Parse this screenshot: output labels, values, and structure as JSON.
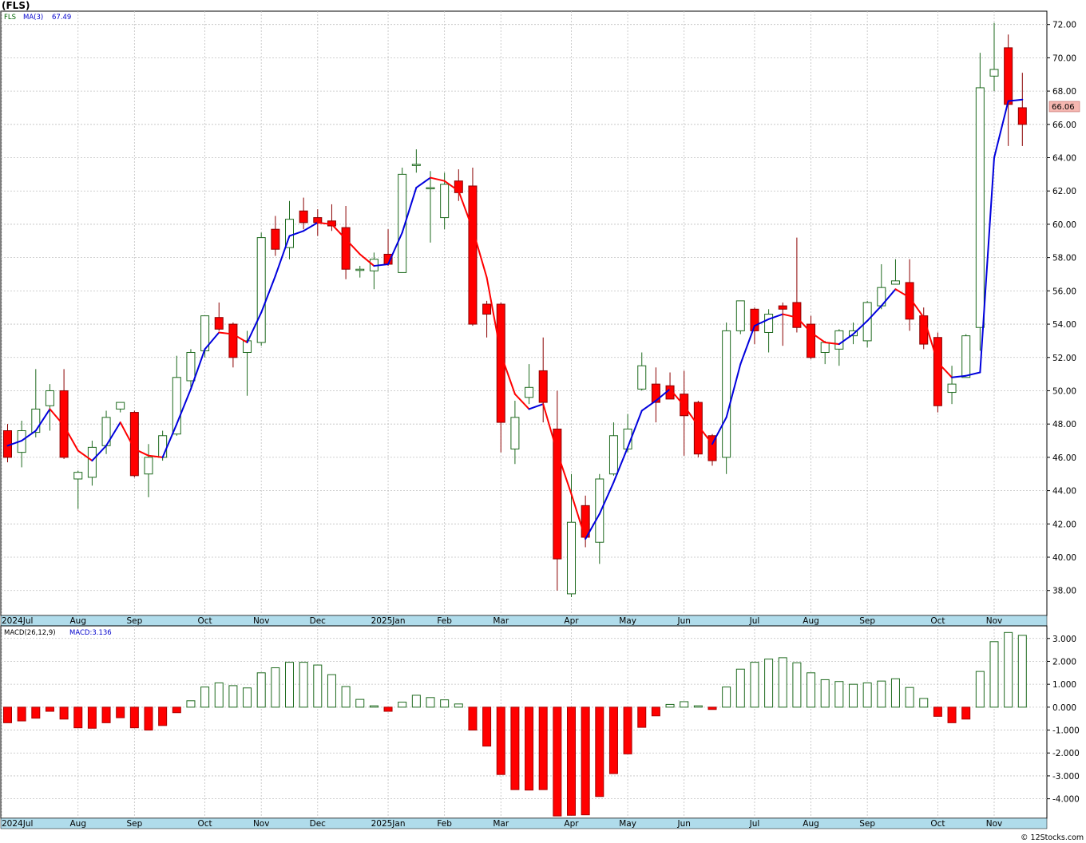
{
  "header": {
    "symbol_title": "(FLS)",
    "legend_symbol": "FLS",
    "legend_ma": "MA(3)",
    "legend_ma_value": "67.49",
    "last_price_label": "66.06",
    "macd_label": "MACD(26,12,9)",
    "macd_value_label": "MACD:3.136",
    "watermark": "© 12Stocks.com"
  },
  "colors": {
    "up": "#1e6a1e",
    "down": "#ff0000",
    "ma_up": "#0000dd",
    "ma_down": "#ff0000",
    "axis_strip": "#b0dceb",
    "price_tag": "#f5b7b1",
    "grid": "#c0c0c0",
    "text": "#000000",
    "legend_blue": "#0000cc"
  },
  "chart_data": [
    {
      "type": "candlestick",
      "title": "(FLS)",
      "ylim": [
        36.5,
        72.8
      ],
      "yticks": [
        "38.00",
        "40.00",
        "42.00",
        "44.00",
        "46.00",
        "48.00",
        "50.00",
        "52.00",
        "54.00",
        "56.00",
        "58.00",
        "60.00",
        "62.00",
        "64.00",
        "66.00",
        "68.00",
        "70.00",
        "72.00"
      ],
      "x_ticks": [
        {
          "label": "2024Jul",
          "index": -0.5
        },
        {
          "label": "Aug",
          "index": 5
        },
        {
          "label": "Sep",
          "index": 9
        },
        {
          "label": "Oct",
          "index": 14
        },
        {
          "label": "Nov",
          "index": 18
        },
        {
          "label": "Dec",
          "index": 22
        },
        {
          "label": "2025Jan",
          "index": 27
        },
        {
          "label": "Feb",
          "index": 31
        },
        {
          "label": "Mar",
          "index": 35
        },
        {
          "label": "Apr",
          "index": 40
        },
        {
          "label": "May",
          "index": 44
        },
        {
          "label": "Jun",
          "index": 48
        },
        {
          "label": "Jul",
          "index": 53
        },
        {
          "label": "Aug",
          "index": 57
        },
        {
          "label": "Sep",
          "index": 61
        },
        {
          "label": "Oct",
          "index": 66
        },
        {
          "label": "Nov",
          "index": 70
        }
      ],
      "candles": [
        {
          "o": 47.6,
          "h": 48.0,
          "l": 45.7,
          "c": 46.0
        },
        {
          "o": 46.3,
          "h": 48.2,
          "l": 45.4,
          "c": 47.6
        },
        {
          "o": 47.5,
          "h": 51.3,
          "l": 47.2,
          "c": 48.9
        },
        {
          "o": 49.1,
          "h": 50.4,
          "l": 47.6,
          "c": 50.0
        },
        {
          "o": 50.0,
          "h": 51.3,
          "l": 45.9,
          "c": 46.0
        },
        {
          "o": 44.7,
          "h": 45.2,
          "l": 42.9,
          "c": 45.1
        },
        {
          "o": 44.8,
          "h": 47.0,
          "l": 44.3,
          "c": 46.6
        },
        {
          "o": 46.7,
          "h": 48.8,
          "l": 46.2,
          "c": 48.4
        },
        {
          "o": 48.9,
          "h": 49.3,
          "l": 48.7,
          "c": 49.3
        },
        {
          "o": 48.7,
          "h": 48.8,
          "l": 44.8,
          "c": 44.9
        },
        {
          "o": 45.0,
          "h": 46.8,
          "l": 43.6,
          "c": 46.0
        },
        {
          "o": 46.0,
          "h": 47.6,
          "l": 45.8,
          "c": 47.3
        },
        {
          "o": 47.4,
          "h": 52.1,
          "l": 47.3,
          "c": 50.8
        },
        {
          "o": 50.6,
          "h": 52.5,
          "l": 50.2,
          "c": 52.3
        },
        {
          "o": 52.4,
          "h": 54.5,
          "l": 52.0,
          "c": 54.5
        },
        {
          "o": 54.4,
          "h": 55.3,
          "l": 53.6,
          "c": 53.7
        },
        {
          "o": 54.0,
          "h": 54.1,
          "l": 51.4,
          "c": 52.0
        },
        {
          "o": 52.3,
          "h": 53.6,
          "l": 49.7,
          "c": 53.0
        },
        {
          "o": 52.9,
          "h": 59.5,
          "l": 52.7,
          "c": 59.2
        },
        {
          "o": 59.7,
          "h": 60.5,
          "l": 58.1,
          "c": 58.5
        },
        {
          "o": 58.6,
          "h": 61.4,
          "l": 57.9,
          "c": 60.3
        },
        {
          "o": 60.8,
          "h": 61.6,
          "l": 59.7,
          "c": 60.1
        },
        {
          "o": 60.4,
          "h": 60.9,
          "l": 59.3,
          "c": 60.1
        },
        {
          "o": 60.2,
          "h": 61.2,
          "l": 59.6,
          "c": 59.9
        },
        {
          "o": 59.8,
          "h": 61.1,
          "l": 56.7,
          "c": 57.3
        },
        {
          "o": 57.3,
          "h": 57.5,
          "l": 56.8,
          "c": 57.3
        },
        {
          "o": 57.2,
          "h": 58.3,
          "l": 56.1,
          "c": 57.9
        },
        {
          "o": 58.2,
          "h": 59.7,
          "l": 57.5,
          "c": 57.6
        },
        {
          "o": 57.1,
          "h": 63.4,
          "l": 57.1,
          "c": 63.0
        },
        {
          "o": 63.6,
          "h": 64.5,
          "l": 63.1,
          "c": 63.6
        },
        {
          "o": 62.2,
          "h": 63.2,
          "l": 58.9,
          "c": 62.2
        },
        {
          "o": 60.4,
          "h": 63.1,
          "l": 59.7,
          "c": 62.4
        },
        {
          "o": 62.6,
          "h": 63.3,
          "l": 61.4,
          "c": 61.9
        },
        {
          "o": 62.3,
          "h": 63.4,
          "l": 53.9,
          "c": 54.0
        },
        {
          "o": 55.2,
          "h": 55.4,
          "l": 53.2,
          "c": 54.6
        },
        {
          "o": 55.2,
          "h": 55.3,
          "l": 46.3,
          "c": 48.1
        },
        {
          "o": 46.5,
          "h": 49.4,
          "l": 45.6,
          "c": 48.4
        },
        {
          "o": 49.6,
          "h": 51.6,
          "l": 49.2,
          "c": 50.2
        },
        {
          "o": 51.2,
          "h": 53.2,
          "l": 48.1,
          "c": 49.3
        },
        {
          "o": 47.7,
          "h": 50.0,
          "l": 38.0,
          "c": 39.9
        },
        {
          "o": 37.8,
          "h": 45.0,
          "l": 37.6,
          "c": 42.1
        },
        {
          "o": 43.1,
          "h": 43.7,
          "l": 40.6,
          "c": 41.2
        },
        {
          "o": 40.9,
          "h": 45.0,
          "l": 39.6,
          "c": 44.7
        },
        {
          "o": 45.0,
          "h": 48.1,
          "l": 44.9,
          "c": 47.3
        },
        {
          "o": 46.5,
          "h": 48.6,
          "l": 46.3,
          "c": 47.7
        },
        {
          "o": 50.1,
          "h": 52.3,
          "l": 50.0,
          "c": 51.5
        },
        {
          "o": 50.4,
          "h": 51.4,
          "l": 48.1,
          "c": 49.3
        },
        {
          "o": 50.3,
          "h": 51.1,
          "l": 49.5,
          "c": 49.5
        },
        {
          "o": 49.8,
          "h": 51.2,
          "l": 46.1,
          "c": 48.5
        },
        {
          "o": 49.3,
          "h": 49.4,
          "l": 46.0,
          "c": 46.2
        },
        {
          "o": 47.3,
          "h": 47.4,
          "l": 45.5,
          "c": 45.8
        },
        {
          "o": 46.0,
          "h": 54.1,
          "l": 45.0,
          "c": 53.6
        },
        {
          "o": 53.6,
          "h": 55.4,
          "l": 53.4,
          "c": 55.4
        },
        {
          "o": 54.9,
          "h": 55.0,
          "l": 52.8,
          "c": 53.6
        },
        {
          "o": 53.5,
          "h": 54.9,
          "l": 52.3,
          "c": 54.6
        },
        {
          "o": 55.1,
          "h": 55.3,
          "l": 52.7,
          "c": 54.9
        },
        {
          "o": 55.3,
          "h": 59.2,
          "l": 53.5,
          "c": 53.8
        },
        {
          "o": 54.0,
          "h": 54.5,
          "l": 51.9,
          "c": 52.0
        },
        {
          "o": 52.3,
          "h": 53.0,
          "l": 51.6,
          "c": 52.9
        },
        {
          "o": 52.5,
          "h": 53.7,
          "l": 51.5,
          "c": 53.6
        },
        {
          "o": 53.3,
          "h": 54.1,
          "l": 52.8,
          "c": 53.6
        },
        {
          "o": 53.0,
          "h": 55.4,
          "l": 52.6,
          "c": 55.3
        },
        {
          "o": 55.1,
          "h": 57.6,
          "l": 54.9,
          "c": 56.2
        },
        {
          "o": 56.4,
          "h": 57.9,
          "l": 56.4,
          "c": 56.6
        },
        {
          "o": 56.5,
          "h": 57.9,
          "l": 53.6,
          "c": 54.3
        },
        {
          "o": 54.5,
          "h": 55.0,
          "l": 52.5,
          "c": 52.8
        },
        {
          "o": 53.2,
          "h": 53.5,
          "l": 48.7,
          "c": 49.1
        },
        {
          "o": 49.9,
          "h": 51.5,
          "l": 49.2,
          "c": 50.4
        },
        {
          "o": 50.8,
          "h": 53.4,
          "l": 50.8,
          "c": 53.3
        },
        {
          "o": 53.8,
          "h": 70.3,
          "l": 52.4,
          "c": 68.2
        },
        {
          "o": 68.9,
          "h": 72.1,
          "l": 68.0,
          "c": 69.3
        },
        {
          "o": 70.6,
          "h": 71.4,
          "l": 64.7,
          "c": 67.2
        },
        {
          "o": 67.0,
          "h": 69.1,
          "l": 64.7,
          "c": 66.0
        }
      ],
      "ma3": [
        46.7,
        47.0,
        47.6,
        48.9,
        47.9,
        46.4,
        45.8,
        46.7,
        48.1,
        46.5,
        46.1,
        46.0,
        48.0,
        50.1,
        52.5,
        53.5,
        53.4,
        52.9,
        54.7,
        56.9,
        59.3,
        59.6,
        60.1,
        60.0,
        59.1,
        58.2,
        57.5,
        57.6,
        59.5,
        62.2,
        62.8,
        62.6,
        62.0,
        59.7,
        56.8,
        52.2,
        49.8,
        48.9,
        49.2,
        46.3,
        43.8,
        41.1,
        42.6,
        44.5,
        46.6,
        48.8,
        49.4,
        50.1,
        49.1,
        47.9,
        46.8,
        48.4,
        51.6,
        53.9,
        54.3,
        54.6,
        54.4,
        53.5,
        52.9,
        52.8,
        53.4,
        54.2,
        55.1,
        56.1,
        55.6,
        54.4,
        51.7,
        50.8,
        50.9,
        51.1,
        64.0,
        67.4,
        67.49
      ]
    },
    {
      "type": "bar",
      "title": "MACD(26,12,9)",
      "ylim": [
        -4.85,
        3.55
      ],
      "yticks": [
        "-4.000",
        "-3.000",
        "-2.000",
        "-1.000",
        "0.000",
        "1.000",
        "2.000",
        "3.000"
      ],
      "values": [
        -0.68,
        -0.6,
        -0.48,
        -0.18,
        -0.52,
        -0.9,
        -0.92,
        -0.68,
        -0.46,
        -0.9,
        -1.0,
        -0.8,
        -0.24,
        0.28,
        0.88,
        1.06,
        0.94,
        0.84,
        1.5,
        1.72,
        1.96,
        1.96,
        1.84,
        1.42,
        0.9,
        0.34,
        0.06,
        -0.18,
        0.22,
        0.52,
        0.42,
        0.32,
        0.14,
        -1.0,
        -1.7,
        -2.94,
        -3.6,
        -3.62,
        -3.6,
        -4.75,
        -4.72,
        -4.7,
        -3.9,
        -2.9,
        -2.04,
        -0.88,
        -0.38,
        0.12,
        0.24,
        0.06,
        -0.1,
        0.88,
        1.66,
        1.96,
        2.1,
        2.16,
        1.94,
        1.5,
        1.2,
        1.12,
        1.0,
        1.06,
        1.14,
        1.24,
        0.86,
        0.38,
        -0.4,
        -0.68,
        -0.52,
        1.56,
        2.86,
        3.26,
        3.136
      ]
    }
  ]
}
